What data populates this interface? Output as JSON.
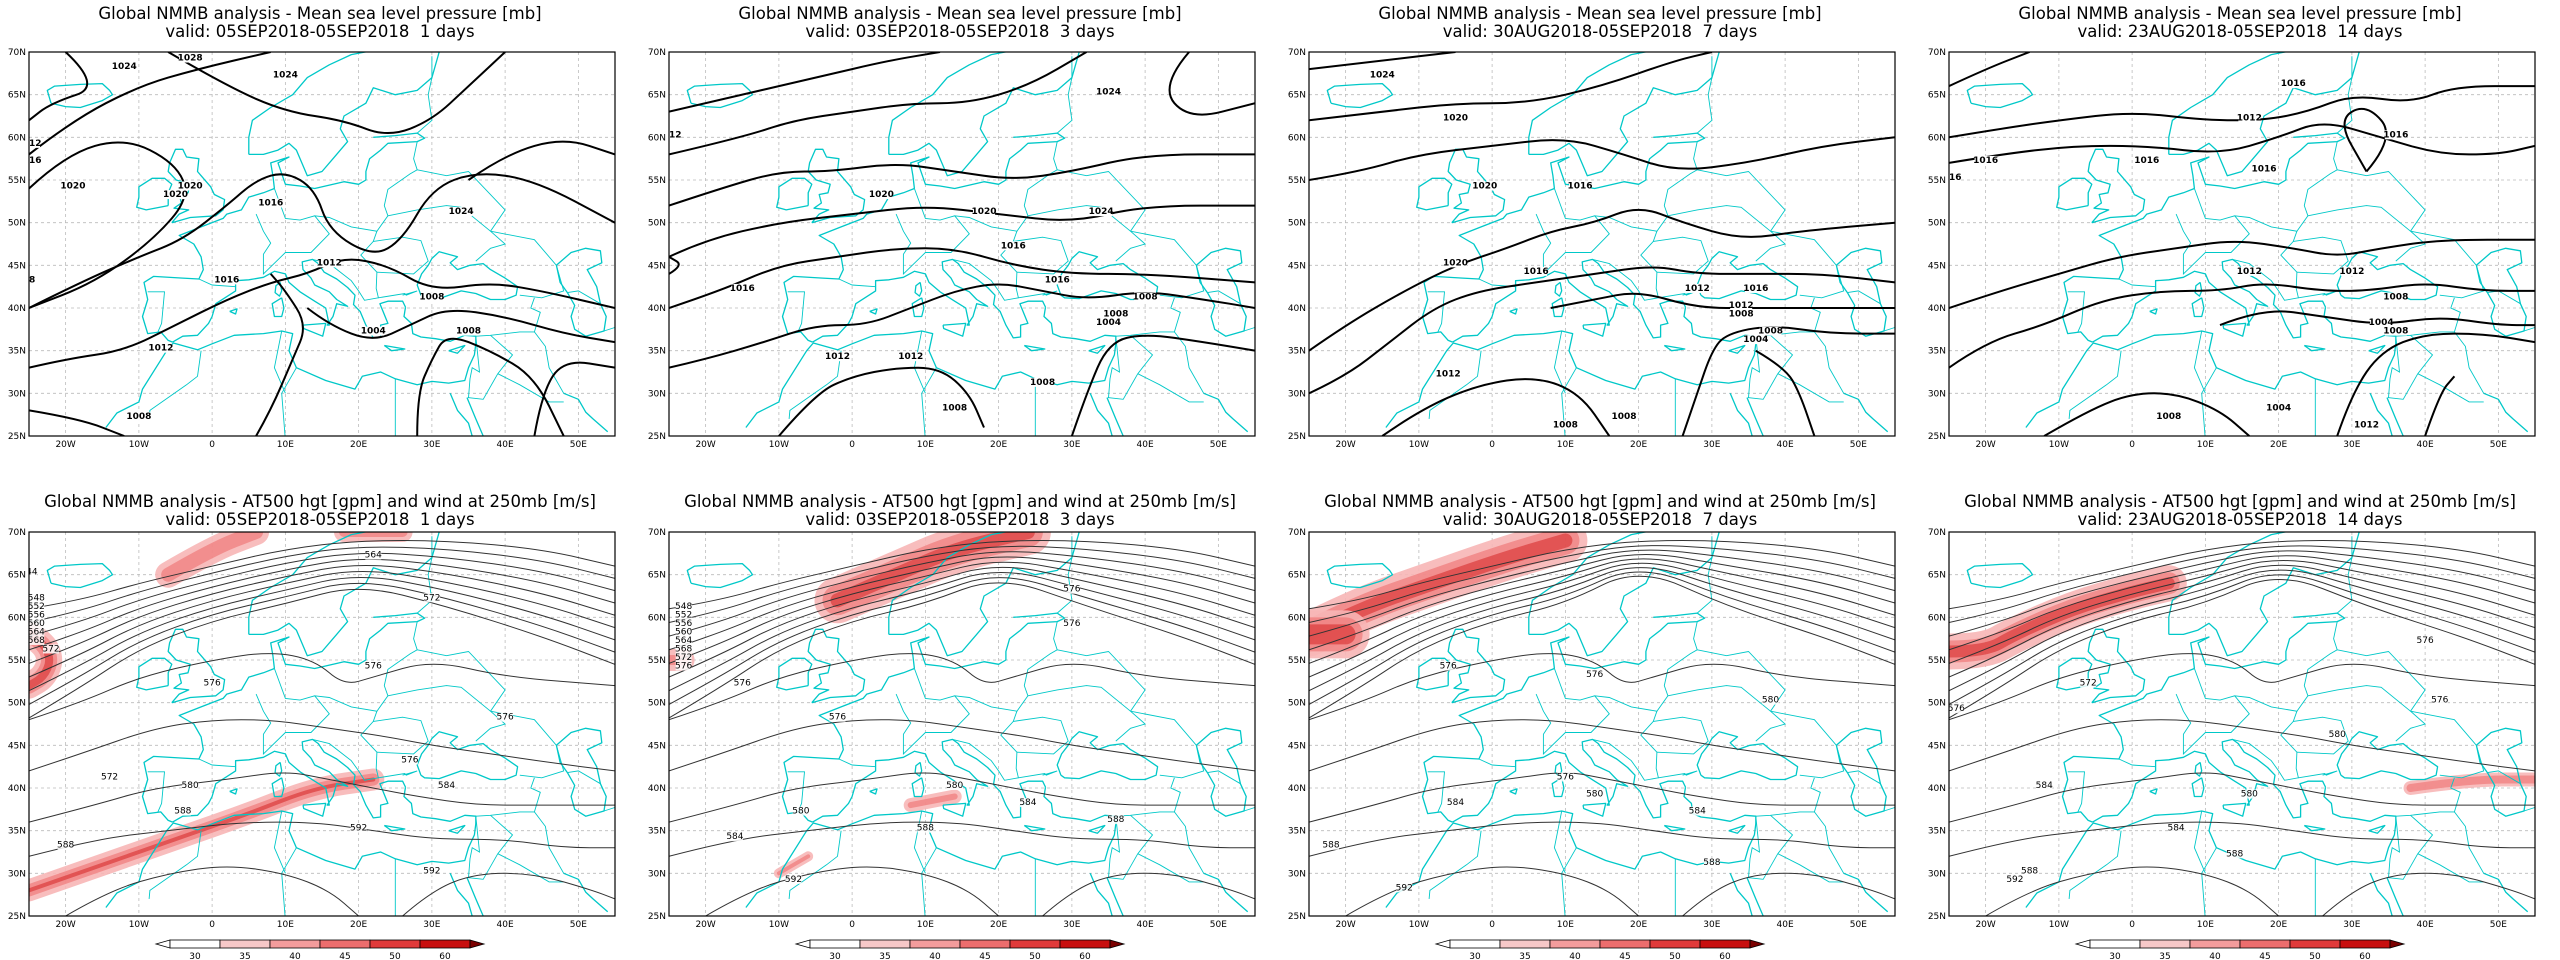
{
  "colors": {
    "coast": "#00c8c8",
    "contour": "#000000",
    "jet_light": "#f7b6b6",
    "jet_mid": "#ef6e6e",
    "jet_dark": "#d11a1a",
    "grid": "#bbbbbb"
  },
  "axes": {
    "lat_labels": [
      "70N",
      "65N",
      "60N",
      "55N",
      "50N",
      "45N",
      "40N",
      "35N",
      "30N",
      "25N"
    ],
    "lon_labels": [
      "20W",
      "10W",
      "0",
      "10E",
      "20E",
      "30E",
      "40E",
      "50E"
    ]
  },
  "colorbar": {
    "labels": [
      "30",
      "35",
      "40",
      "45",
      "50",
      "60"
    ]
  },
  "top_panels": [
    {
      "title1": "Global NMMB analysis - Mean sea level pressure [mb]",
      "title2": "valid: 05SEP2018-05SEP2018  1 days",
      "contour_labels": [
        "1024",
        "1028",
        "1024",
        "1012",
        "1016",
        "1020",
        "1020",
        "1020",
        "1016",
        "1024",
        "1012",
        "1016",
        "1008",
        "1012",
        "1004",
        "1008",
        "1008",
        "28"
      ]
    },
    {
      "title1": "Global NMMB analysis - Mean sea level pressure [mb]",
      "title2": "valid: 03SEP2018-05SEP2018  3 days",
      "contour_labels": [
        "1024",
        "1012",
        "1020",
        "1020",
        "1016",
        "1024",
        "1016",
        "1012",
        "1016",
        "1008",
        "1004",
        "1008",
        "1012",
        "1008",
        "1008"
      ]
    },
    {
      "title1": "Global NMMB analysis - Mean sea level pressure [mb]",
      "title2": "valid: 30AUG2018-05SEP2018  7 days",
      "contour_labels": [
        "1024",
        "1020",
        "1020",
        "1016",
        "1020",
        "1016",
        "1012",
        "1012",
        "1016",
        "1008",
        "1004",
        "1008",
        "1012",
        "1008",
        "1008"
      ]
    },
    {
      "title1": "Global NMMB analysis - Mean sea level pressure [mb]",
      "title2": "valid: 23AUG2018-05SEP2018  14 days",
      "contour_labels": [
        "1016",
        "1012",
        "1016",
        "1016",
        "1016",
        "1016",
        "1016",
        "1012",
        "1012",
        "1008",
        "1004",
        "1008",
        "1008",
        "1004",
        "1012"
      ]
    }
  ],
  "bottom_panels": [
    {
      "title1": "Global NMMB analysis - AT500 hgt [gpm] and wind at 250mb [m/s]",
      "title2": "valid: 05SEP2018-05SEP2018  1 days",
      "contour_labels": [
        "564",
        "572",
        "544",
        "548",
        "552",
        "556",
        "560",
        "564",
        "568",
        "572",
        "576",
        "576",
        "576",
        "572",
        "576",
        "580",
        "584",
        "588",
        "588",
        "592",
        "592"
      ]
    },
    {
      "title1": "Global NMMB analysis - AT500 hgt [gpm] and wind at 250mb [m/s]",
      "title2": "valid: 03SEP2018-05SEP2018  3 days",
      "contour_labels": [
        "576",
        "576",
        "548",
        "552",
        "556",
        "560",
        "564",
        "568",
        "572",
        "576",
        "576",
        "576",
        "580",
        "580",
        "584",
        "584",
        "588",
        "592",
        "588"
      ]
    },
    {
      "title1": "Global NMMB analysis - AT500 hgt [gpm] and wind at 250mb [m/s]",
      "title2": "valid: 30AUG2018-05SEP2018  7 days",
      "contour_labels": [
        "576",
        "576",
        "580",
        "576",
        "580",
        "584",
        "584",
        "588",
        "592",
        "588"
      ]
    },
    {
      "title1": "Global NMMB analysis - AT500 hgt [gpm] and wind at 250mb [m/s]",
      "title2": "valid: 23AUG2018-05SEP2018  14 days",
      "contour_labels": [
        "576",
        "572",
        "576",
        "580",
        "576",
        "580",
        "584",
        "584",
        "588",
        "588",
        "592"
      ]
    }
  ]
}
